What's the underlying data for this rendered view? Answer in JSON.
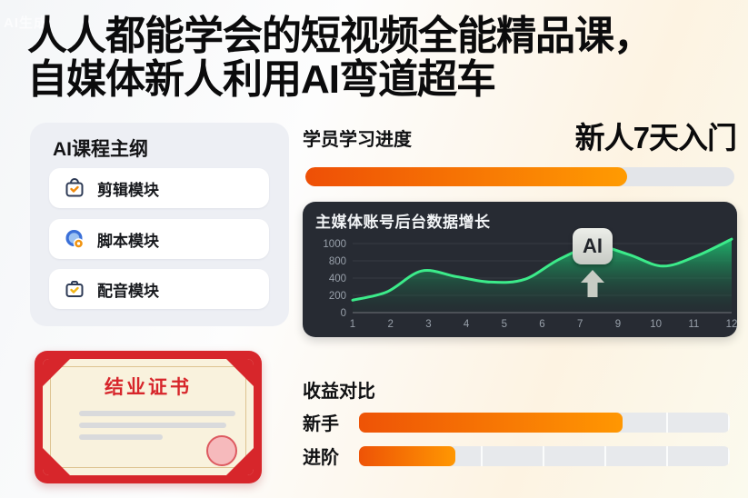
{
  "watermark": "AI生成",
  "title": {
    "line1": "人人都能学会的短视频全能精品课，",
    "line2": "自媒体新人利用AI弯道超车"
  },
  "course_outline": {
    "title": "AI课程主纲",
    "items": [
      {
        "icon": "bag-check-icon",
        "label": "剪辑模块"
      },
      {
        "icon": "globe-badge-icon",
        "label": "脚本模块"
      },
      {
        "icon": "briefcase-check-icon",
        "label": "配音模块"
      }
    ]
  },
  "progress": {
    "label": "学员学习进度",
    "highlight": "新人7天入门",
    "percent": 75
  },
  "chart_data": {
    "type": "area",
    "title": "主媒体账号后台数据增长",
    "x": [
      1,
      2,
      3,
      4,
      5,
      6,
      7,
      8,
      9,
      10,
      11,
      12
    ],
    "x_tick_labels": [
      "1",
      "2",
      "3",
      "4",
      "5",
      "6",
      "7",
      "9",
      "10",
      "11",
      "12"
    ],
    "y_tick_labels": [
      "1000",
      "800",
      "400",
      "200",
      "0"
    ],
    "values": [
      180,
      300,
      600,
      520,
      440,
      480,
      770,
      960,
      840,
      670,
      820,
      1060
    ],
    "ylim": [
      0,
      1100
    ],
    "grid": "faint horizontal lines",
    "legend": "none",
    "annotation": {
      "label": "AI",
      "near_x": 9,
      "arrow": "up"
    },
    "line_color": "#3ceb8a",
    "fill_color": "#1eb96e",
    "panel_color": "#272b33"
  },
  "certificate": {
    "title": "结业证书"
  },
  "comparison": {
    "title": "收益对比",
    "rows": [
      {
        "label": "新手",
        "percent": 71
      },
      {
        "label": "进阶",
        "percent": 26
      }
    ]
  },
  "colors": {
    "accent_orange_dark": "#ee5306",
    "accent_orange_light": "#ff9b02",
    "cert_red": "#d7262b",
    "chart_green": "#3ceb8a"
  }
}
